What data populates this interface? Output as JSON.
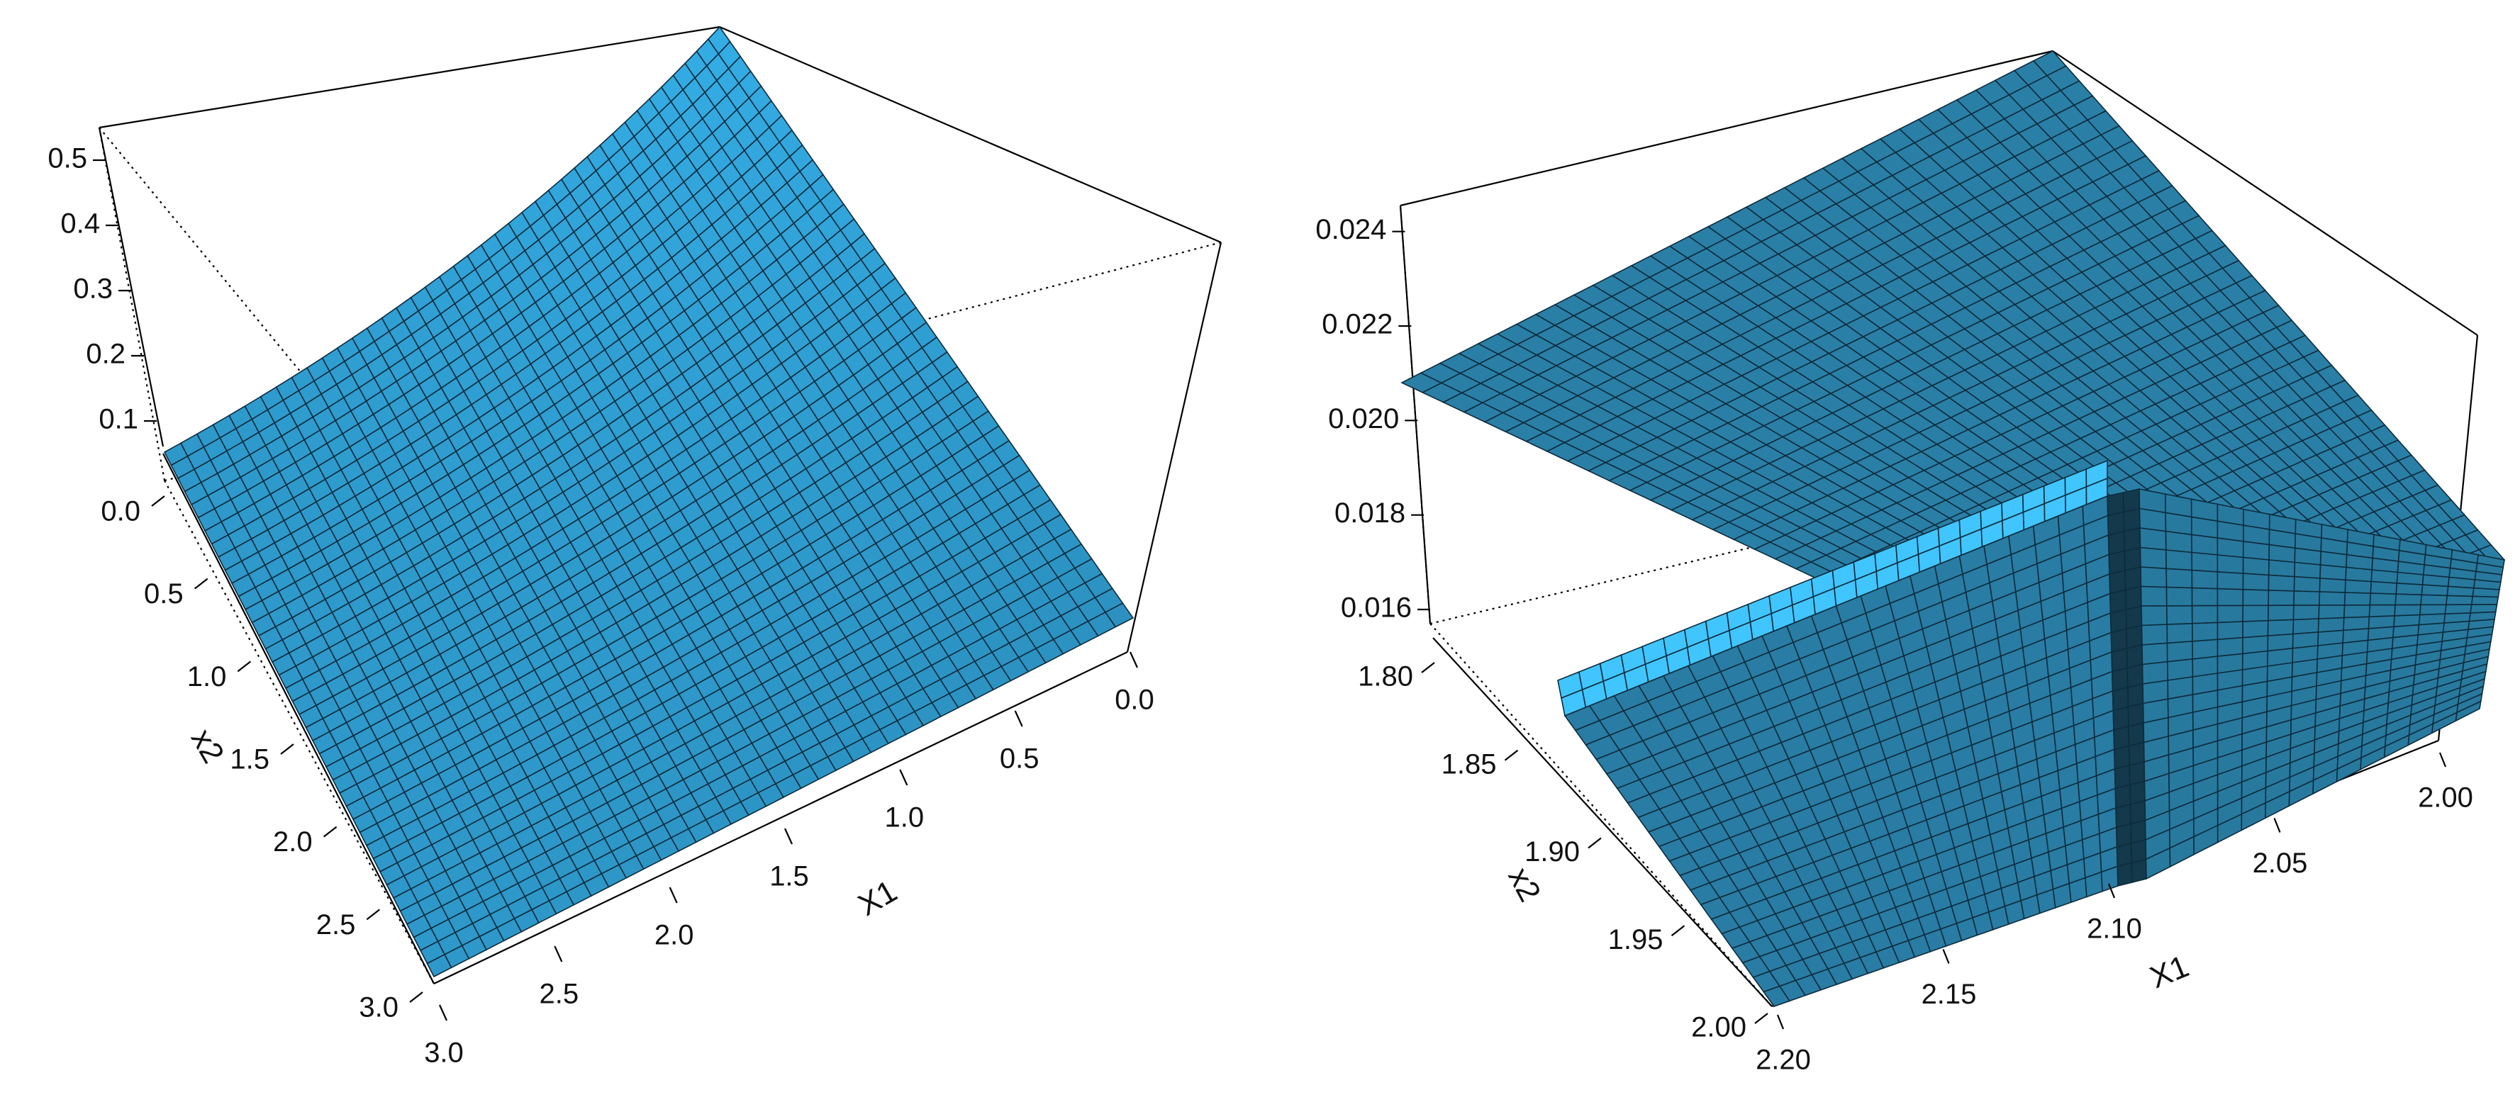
{
  "chart_data": [
    {
      "type": "surface",
      "panel": "left",
      "xlabel": "X1",
      "ylabel": "x2",
      "zlabel": "",
      "xlim": [
        0.0,
        3.0
      ],
      "ylim": [
        0.0,
        3.0
      ],
      "zlim": [
        0.05,
        0.55
      ],
      "x_ticks": [
        "0.0",
        "0.5",
        "1.0",
        "1.5",
        "2.0",
        "2.5",
        "3.0"
      ],
      "y_ticks": [
        "0.0",
        "0.5",
        "1.0",
        "1.5",
        "2.0",
        "2.5",
        "3.0"
      ],
      "z_ticks": [
        "0.1",
        "0.2",
        "0.3",
        "0.4",
        "0.5"
      ],
      "corner_values": {
        "x0_y0": 0.55,
        "x3_y0": 0.065,
        "x0_y3": 0.065,
        "x3_y3": 0.01
      },
      "surface_color": "#2f9dd0",
      "grid": "mesh"
    },
    {
      "type": "surface",
      "panel": "right",
      "xlabel": "X1",
      "ylabel": "x2",
      "zlabel": "",
      "xlim": [
        2.0,
        2.2
      ],
      "ylim": [
        1.8,
        2.0
      ],
      "zlim": [
        0.016,
        0.025
      ],
      "x_ticks": [
        "2.00",
        "2.05",
        "2.10",
        "2.15",
        "2.20"
      ],
      "y_ticks": [
        "1.80",
        "1.85",
        "1.90",
        "1.95",
        "2.00"
      ],
      "z_ticks": [
        "0.016",
        "0.018",
        "0.020",
        "0.022",
        "0.024"
      ],
      "corner_values": {
        "x2.2_y1.8": 0.0215,
        "x2.0_y1.8": 0.0255,
        "x2.0_y2.0": 0.0183,
        "x2.2_y2.0": 0.0145
      },
      "discontinuities": [
        {
          "at": "x2",
          "value": 1.9
        },
        {
          "at": "X1",
          "value": 2.1
        }
      ],
      "surface_color": "#2a7fa6",
      "grid": "mesh"
    }
  ]
}
